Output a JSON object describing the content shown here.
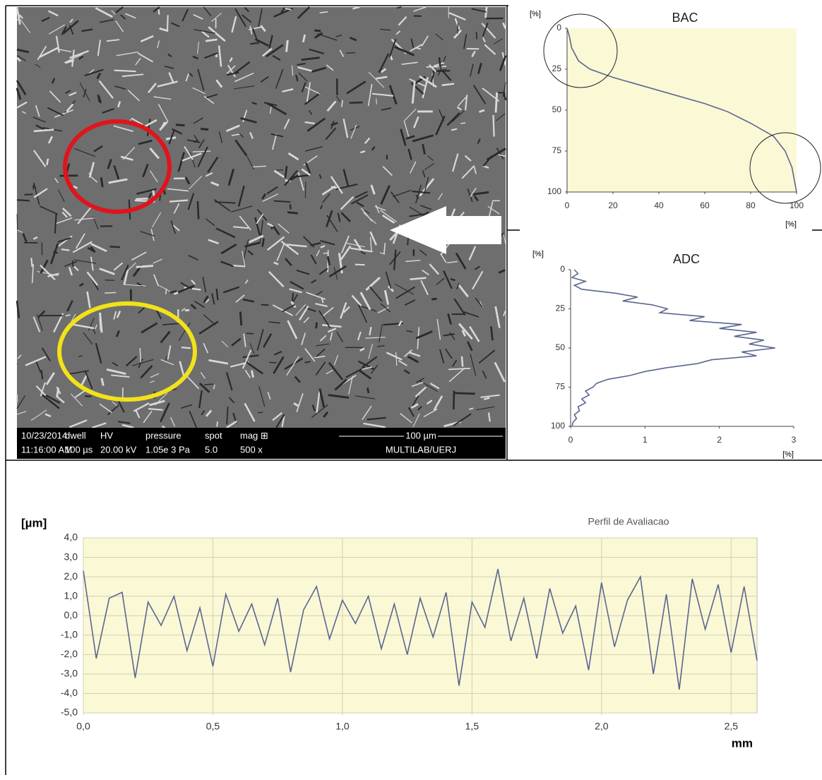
{
  "sem_image": {
    "info_headers": [
      "10/23/2014",
      "dwell",
      "HV",
      "pressure",
      "spot",
      "mag ⊞"
    ],
    "info_values": [
      "11:16:00 AM",
      "100 µs",
      "20.00 kV",
      "1.05e 3 Pa",
      "5.0",
      "500 x"
    ],
    "scale_bar": "100 µm",
    "lab": "MULTILAB/UERJ"
  },
  "chart_data": [
    {
      "type": "line",
      "title": "BAC",
      "y_label": "[%]",
      "x_label": "[%]",
      "color": "#5a6690",
      "grid": false,
      "x": [
        0,
        1,
        2,
        5,
        10,
        20,
        40,
        60,
        70,
        80,
        90,
        95,
        98,
        100
      ],
      "values": [
        0,
        5,
        12,
        20,
        25,
        30,
        38,
        46,
        51,
        58,
        66,
        75,
        85,
        100
      ],
      "xlim": [
        0,
        100
      ],
      "xticks": [
        0,
        20,
        40,
        60,
        80,
        100
      ],
      "ylim": [
        100,
        0
      ],
      "yticks": [
        0,
        25,
        50,
        75,
        100
      ]
    },
    {
      "type": "line",
      "title": "ADC",
      "y_label": "[%]",
      "x_label": "[%]",
      "color": "#5a6690",
      "grid": false,
      "x": [
        0.05,
        0.1,
        0.02,
        0.2,
        0.05,
        0.15,
        0.6,
        0.9,
        0.7,
        1.1,
        1.3,
        1.2,
        1.8,
        1.6,
        2.3,
        2.0,
        2.5,
        2.2,
        2.6,
        2.4,
        2.75,
        2.3,
        2.5,
        1.9,
        1.7,
        1.3,
        1.0,
        0.8,
        0.5,
        0.35,
        0.3,
        0.2,
        0.25,
        0.15,
        0.2,
        0.1,
        0.12,
        0.05,
        0.08,
        0.03,
        0.02
      ],
      "values": [
        0,
        2.5,
        5,
        7.5,
        10,
        12.5,
        15,
        17.5,
        20,
        22.5,
        25,
        27.5,
        30,
        32.5,
        35,
        37.5,
        40,
        42.5,
        45,
        47.5,
        50,
        52.5,
        55,
        57.5,
        60,
        62.5,
        65,
        67.5,
        70,
        72.5,
        75,
        77.5,
        80,
        82.5,
        85,
        87.5,
        90,
        92.5,
        95,
        97.5,
        100
      ],
      "xlim": [
        0,
        3
      ],
      "xticks": [
        0,
        1,
        2,
        3
      ],
      "ylim": [
        100,
        0
      ],
      "yticks": [
        0,
        25,
        50,
        75,
        100
      ]
    },
    {
      "type": "line",
      "title": "Perfil de Avaliacao",
      "y_label": "[µm]",
      "x_label": "mm",
      "color": "#5a6690",
      "grid": true,
      "x": [
        0,
        0.05,
        0.1,
        0.15,
        0.2,
        0.25,
        0.3,
        0.35,
        0.4,
        0.45,
        0.5,
        0.55,
        0.6,
        0.65,
        0.7,
        0.75,
        0.8,
        0.85,
        0.9,
        0.95,
        1.0,
        1.05,
        1.1,
        1.15,
        1.2,
        1.25,
        1.3,
        1.35,
        1.4,
        1.45,
        1.5,
        1.55,
        1.6,
        1.65,
        1.7,
        1.75,
        1.8,
        1.85,
        1.9,
        1.95,
        2.0,
        2.05,
        2.1,
        2.15,
        2.2,
        2.25,
        2.3,
        2.35,
        2.4,
        2.45,
        2.5,
        2.55,
        2.6
      ],
      "values": [
        2.3,
        -2.2,
        0.9,
        1.2,
        -3.2,
        0.7,
        -0.5,
        1.0,
        -1.8,
        0.4,
        -2.6,
        1.1,
        -0.8,
        0.6,
        -1.5,
        0.9,
        -2.9,
        0.3,
        1.5,
        -1.2,
        0.8,
        -0.4,
        1.0,
        -1.7,
        0.6,
        -2.0,
        0.9,
        -1.1,
        1.2,
        -3.6,
        0.7,
        -0.6,
        2.4,
        -1.3,
        0.9,
        -2.2,
        1.4,
        -0.9,
        0.5,
        -2.8,
        1.7,
        -1.6,
        0.8,
        2.0,
        -3.0,
        1.1,
        -3.8,
        1.9,
        -0.7,
        1.6,
        -1.9,
        1.5,
        -2.3
      ],
      "xlim": [
        0,
        2.6
      ],
      "xticks": [
        {
          "value": 0,
          "label": "0,0"
        },
        {
          "value": 0.5,
          "label": "0,5"
        },
        {
          "value": 1,
          "label": "1,0"
        },
        {
          "value": 1.5,
          "label": "1,5"
        },
        {
          "value": 2,
          "label": "2,0"
        },
        {
          "value": 2.5,
          "label": "2,5"
        }
      ],
      "ylim": [
        -5,
        4
      ],
      "yticks": [
        {
          "value": 4,
          "label": "4,0"
        },
        {
          "value": 3,
          "label": "3,0"
        },
        {
          "value": 2,
          "label": "2,0"
        },
        {
          "value": 1,
          "label": "1,0"
        },
        {
          "value": 0,
          "label": "0,0"
        },
        {
          "value": -1,
          "label": "-1,0"
        },
        {
          "value": -2,
          "label": "-2,0"
        },
        {
          "value": -3,
          "label": "-3,0"
        },
        {
          "value": -4,
          "label": "-4,0"
        },
        {
          "value": -5,
          "label": "-5,0"
        }
      ]
    }
  ]
}
